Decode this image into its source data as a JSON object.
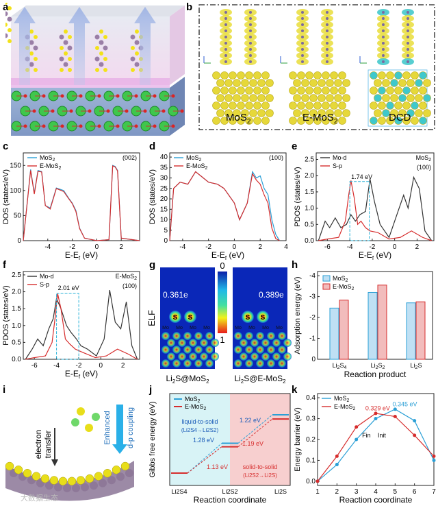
{
  "panels": {
    "a": {
      "label": "a"
    },
    "b": {
      "label": "b",
      "captions": [
        "MoS",
        "E-MoS",
        "DCD"
      ],
      "caption_subs": [
        "2",
        "2",
        ""
      ]
    },
    "c": {
      "label": "c",
      "tag": "(002)",
      "xlabel": "E-E",
      "xsub": "f",
      "xunit": " (eV)",
      "ylabel": "DOS (states/eV)",
      "legend": [
        "MoS",
        "E-MoS"
      ],
      "legend_subs": [
        "2",
        "2"
      ],
      "xticks": [
        "-4",
        "-2",
        "0",
        "2"
      ],
      "yticks": [
        "0",
        "50",
        "100",
        "150"
      ]
    },
    "d": {
      "label": "d",
      "tag": "(100)",
      "xlabel": "E-E",
      "xsub": "f",
      "xunit": " (eV)",
      "ylabel": "DOS (states/eV)",
      "legend": [
        "MoS",
        "E-MoS"
      ],
      "legend_subs": [
        "2",
        "2"
      ],
      "xticks": [
        "-4",
        "-2",
        "0",
        "2",
        "4"
      ],
      "yticks": [
        "0",
        "5",
        "10",
        "15",
        "20",
        "25",
        "30",
        "35",
        "40"
      ]
    },
    "e": {
      "label": "e",
      "tag": "MoS",
      "tag_sub": "2",
      "tag2": "(100)",
      "annot": "1.74 eV",
      "xlabel": "E-E",
      "xsub": "f",
      "xunit": " (eV)",
      "ylabel": "PDOS (states/eV)",
      "legend": [
        "Mo-d",
        "S-p"
      ],
      "xticks": [
        "-6",
        "-4",
        "-2",
        "0",
        "2"
      ],
      "yticks": [
        "0.0",
        "0.5",
        "1.0",
        "1.5",
        "2.0",
        "2.5"
      ]
    },
    "f": {
      "label": "f",
      "tag": "E-MoS",
      "tag_sub": "2",
      "tag2": "(100)",
      "annot": "2.01 eV",
      "xlabel": "E-E",
      "xsub": "f",
      "xunit": " (eV)",
      "ylabel": "PDOS (states/eV)",
      "legend": [
        "Mo-d",
        "S-p"
      ],
      "xticks": [
        "-6",
        "-4",
        "-2",
        "0",
        "2"
      ],
      "yticks": [
        "0.0",
        "0.5",
        "1.0",
        "1.5",
        "2.0",
        "2.5"
      ]
    },
    "g": {
      "label": "g",
      "ylabel": "ELF",
      "scale_top": "0",
      "scale_bot": "1",
      "val_left": "0.361e",
      "val_right": "0.389e",
      "atom_s": "S",
      "atom_mo": "Mo",
      "cap_left": "Li",
      "cap_left_rest": "S",
      "cap_left_tail": "@MoS",
      "cap_right": "Li",
      "cap_right_rest": "S",
      "cap_right_tail": "@E-MoS"
    },
    "h": {
      "label": "h",
      "ylabel": "Adsorption energy (eV)",
      "xlabel": "Reaction product",
      "legend": [
        "MoS",
        "E-MoS"
      ],
      "legend_subs": [
        "2",
        "2"
      ],
      "yticks": [
        "0",
        "-1",
        "-2",
        "-3",
        "-4"
      ],
      "xcats": [
        "Li",
        "Li",
        "Li"
      ],
      "xcat_subs": [
        [
          "2",
          "S",
          "4"
        ],
        [
          "2",
          "S",
          "2"
        ],
        [
          "2",
          "S",
          ""
        ]
      ]
    },
    "i": {
      "label": "i",
      "text1": "electron",
      "text2": "transfer",
      "text3": "Enhanced",
      "text4": "d-p coupling"
    },
    "j": {
      "label": "j",
      "ylabel": "Gibbs free energy (eV)",
      "xlabel": "Reaction coordinate",
      "legend": [
        "MoS",
        "E-MoS"
      ],
      "legend_subs": [
        "2",
        "2"
      ],
      "l2s_a": "liquid-to-solid",
      "l2s_b": "(Li2S4→Li2S2)",
      "s2s_a": "solid-to-solid",
      "s2s_b": "(Li2S2→Li2S)",
      "e1": "1.28 eV",
      "e2": "1.13 eV",
      "e3": "1.22 eV",
      "e4": "1.19 eV",
      "xcats": [
        "Li2S4",
        "Li2S2",
        "Li2S"
      ],
      "yticks": [
        "0",
        "-1",
        "-2",
        "-3",
        "-4",
        "-5"
      ]
    },
    "k": {
      "label": "k",
      "ylabel": "Energy barrier (eV)",
      "xlabel": "Reaction coordinate",
      "legend": [
        "MoS",
        "E-MoS"
      ],
      "legend_subs": [
        "2",
        "2"
      ],
      "v1": "0.329 eV",
      "v2": "0.345 eV",
      "fin": "Fin",
      "init": "Init",
      "xticks": [
        "1",
        "2",
        "3",
        "4",
        "5",
        "6",
        "7"
      ],
      "yticks": [
        "0.0",
        "0.1",
        "0.2",
        "0.3",
        "0.4"
      ]
    }
  },
  "watermark": "大数据生态",
  "colors": {
    "mos2": "#2a9fd6",
    "emos2": "#d62c2c",
    "mod": "#333333",
    "sp": "#d62c2c",
    "dcd_box": "#2bb3d9"
  },
  "chart_data": [
    {
      "type": "line",
      "panel": "c",
      "xlabel": "E-Ef (eV)",
      "ylabel": "DOS (states/eV)",
      "xlim": [
        -6,
        3.5
      ],
      "ylim": [
        0,
        175
      ],
      "series": [
        {
          "name": "MoS2",
          "x": [
            -6,
            -5.4,
            -5.1,
            -4.8,
            -4.5,
            -4.2,
            -3.8,
            -3.3,
            -2.7,
            -2.3,
            -2.0,
            -1.7,
            -1.4,
            -1.0,
            0,
            1.0,
            1.3,
            1.5,
            1.7,
            2.0,
            3.5
          ],
          "y": [
            0,
            142,
            95,
            140,
            138,
            70,
            65,
            105,
            100,
            85,
            75,
            60,
            25,
            5,
            0,
            2,
            150,
            148,
            140,
            5,
            0
          ]
        },
        {
          "name": "E-MoS2",
          "x": [
            -6,
            -5.4,
            -5.1,
            -4.8,
            -4.5,
            -4.2,
            -3.8,
            -3.3,
            -2.7,
            -2.3,
            -2.0,
            -1.7,
            -1.4,
            -1.0,
            0,
            1.0,
            1.3,
            1.5,
            1.7,
            2.0,
            3.5
          ],
          "y": [
            0,
            140,
            93,
            138,
            137,
            70,
            63,
            104,
            98,
            84,
            74,
            58,
            24,
            5,
            0,
            2,
            149,
            147,
            139,
            5,
            0
          ]
        }
      ]
    },
    {
      "type": "line",
      "panel": "d",
      "xlabel": "E-Ef (eV)",
      "ylabel": "DOS (states/eV)",
      "xlim": [
        -5,
        4
      ],
      "ylim": [
        0,
        42
      ],
      "series": [
        {
          "name": "MoS2",
          "x": [
            -5,
            -4.7,
            -4.2,
            -3.6,
            -3.0,
            -2.6,
            -2.0,
            -1.3,
            -0.8,
            0,
            0.4,
            1.0,
            1.4,
            1.7,
            2.0,
            2.3,
            2.6,
            2.9,
            3.2,
            3.5
          ],
          "y": [
            0,
            25,
            28,
            27,
            33,
            31,
            28,
            27,
            25,
            18,
            10,
            18,
            33,
            30,
            31,
            25,
            22,
            10,
            3,
            0
          ]
        },
        {
          "name": "E-MoS2",
          "x": [
            -5,
            -4.7,
            -4.2,
            -3.6,
            -3.0,
            -2.6,
            -2.0,
            -1.3,
            -0.8,
            0,
            0.4,
            1.0,
            1.4,
            1.7,
            2.0,
            2.3,
            2.6,
            2.9,
            3.2,
            3.5
          ],
          "y": [
            0,
            25,
            28,
            27,
            33,
            31,
            28,
            27,
            25,
            18,
            10,
            18,
            32,
            29,
            27,
            22,
            18,
            6,
            1,
            0
          ]
        }
      ]
    },
    {
      "type": "line",
      "panel": "e",
      "xlabel": "E-Ef (eV)",
      "ylabel": "PDOS (states/eV)",
      "xlim": [
        -7,
        3.5
      ],
      "ylim": [
        0,
        2.7
      ],
      "series": [
        {
          "name": "Mo-d",
          "x": [
            -6.8,
            -6.2,
            -5.8,
            -5.3,
            -4.8,
            -4.3,
            -3.9,
            -3.5,
            -3.1,
            -2.6,
            -2.2,
            -1.8,
            -1.3,
            -0.5,
            0.3,
            0.8,
            1.2,
            1.7,
            2.2,
            2.7,
            3.3
          ],
          "y": [
            0,
            0.6,
            0.4,
            0.7,
            0.4,
            0.5,
            0.8,
            0.6,
            0.8,
            0.9,
            1.9,
            1.2,
            0.5,
            0.1,
            0.9,
            1.4,
            1.0,
            1.95,
            1.6,
            0.3,
            0
          ]
        },
        {
          "name": "S-p",
          "x": [
            -6.8,
            -6,
            -5,
            -4.4,
            -4.1,
            -3.9,
            -3.6,
            -3.3,
            -3.0,
            -2.6,
            -2.2,
            -1.5,
            -0.5,
            0.5,
            1.5,
            2.5,
            3.3
          ],
          "y": [
            0,
            0.05,
            0.1,
            0.6,
            1.4,
            1.85,
            1.3,
            0.5,
            0.6,
            0.4,
            0.3,
            0.25,
            0.05,
            0.1,
            0.3,
            0.1,
            0
          ]
        }
      ]
    },
    {
      "type": "line",
      "panel": "f",
      "xlabel": "E-Ef (eV)",
      "ylabel": "PDOS (states/eV)",
      "xlim": [
        -7,
        3.5
      ],
      "ylim": [
        0,
        2.6
      ],
      "series": [
        {
          "name": "Mo-d",
          "x": [
            -6.8,
            -6.2,
            -5.7,
            -5.2,
            -4.7,
            -4.3,
            -4.0,
            -3.6,
            -3.1,
            -2.7,
            -2.2,
            -1.8,
            -1.2,
            -0.4,
            0.3,
            0.8,
            1.3,
            1.8,
            2.3,
            2.8,
            3.3
          ],
          "y": [
            0,
            0.3,
            0.6,
            0.4,
            0.9,
            1.2,
            1.8,
            1.5,
            1.0,
            0.8,
            0.6,
            0.4,
            0.3,
            0.1,
            0.6,
            2.05,
            1.1,
            0.9,
            1.7,
            0.4,
            0
          ]
        },
        {
          "name": "S-p",
          "x": [
            -6.8,
            -6,
            -5,
            -4.4,
            -4.1,
            -3.9,
            -3.6,
            -3.2,
            -2.8,
            -2.3,
            -1.6,
            -0.5,
            0.5,
            1.5,
            2.5,
            3.3
          ],
          "y": [
            0,
            0.05,
            0.1,
            0.5,
            1.3,
            1.95,
            1.5,
            0.6,
            0.45,
            0.3,
            0.2,
            0.05,
            0.1,
            0.3,
            0.15,
            0
          ]
        }
      ]
    },
    {
      "type": "bar",
      "panel": "h",
      "categories": [
        "Li2S4",
        "Li2S2",
        "Li2S"
      ],
      "ylabel": "Adsorption energy (eV)",
      "ylim": [
        0,
        -4.2
      ],
      "series": [
        {
          "name": "MoS2",
          "values": [
            -2.45,
            -3.2,
            -2.7
          ]
        },
        {
          "name": "E-MoS2",
          "values": [
            -2.83,
            -3.55,
            -2.75
          ]
        }
      ]
    },
    {
      "type": "line",
      "panel": "j",
      "categories": [
        "Li2S4",
        "Li2S2",
        "Li2S"
      ],
      "ylabel": "Gibbs free energy (eV)",
      "series": [
        {
          "name": "MoS2",
          "values": [
            0,
            1.28,
            2.5
          ]
        },
        {
          "name": "E-MoS2",
          "values": [
            0,
            1.13,
            2.32
          ]
        }
      ]
    },
    {
      "type": "line",
      "panel": "k",
      "xlabel": "Reaction coordinate",
      "ylabel": "Energy barrier (eV)",
      "xlim": [
        1,
        7
      ],
      "ylim": [
        -0.02,
        0.42
      ],
      "series": [
        {
          "name": "MoS2",
          "x": [
            1,
            2,
            3,
            4,
            5,
            6,
            7
          ],
          "y": [
            0,
            0.08,
            0.2,
            0.3,
            0.345,
            0.29,
            0.1
          ]
        },
        {
          "name": "E-MoS2",
          "x": [
            1,
            2,
            3,
            4,
            5,
            6,
            7
          ],
          "y": [
            0,
            0.12,
            0.26,
            0.325,
            0.31,
            0.22,
            0.12
          ]
        }
      ]
    }
  ]
}
